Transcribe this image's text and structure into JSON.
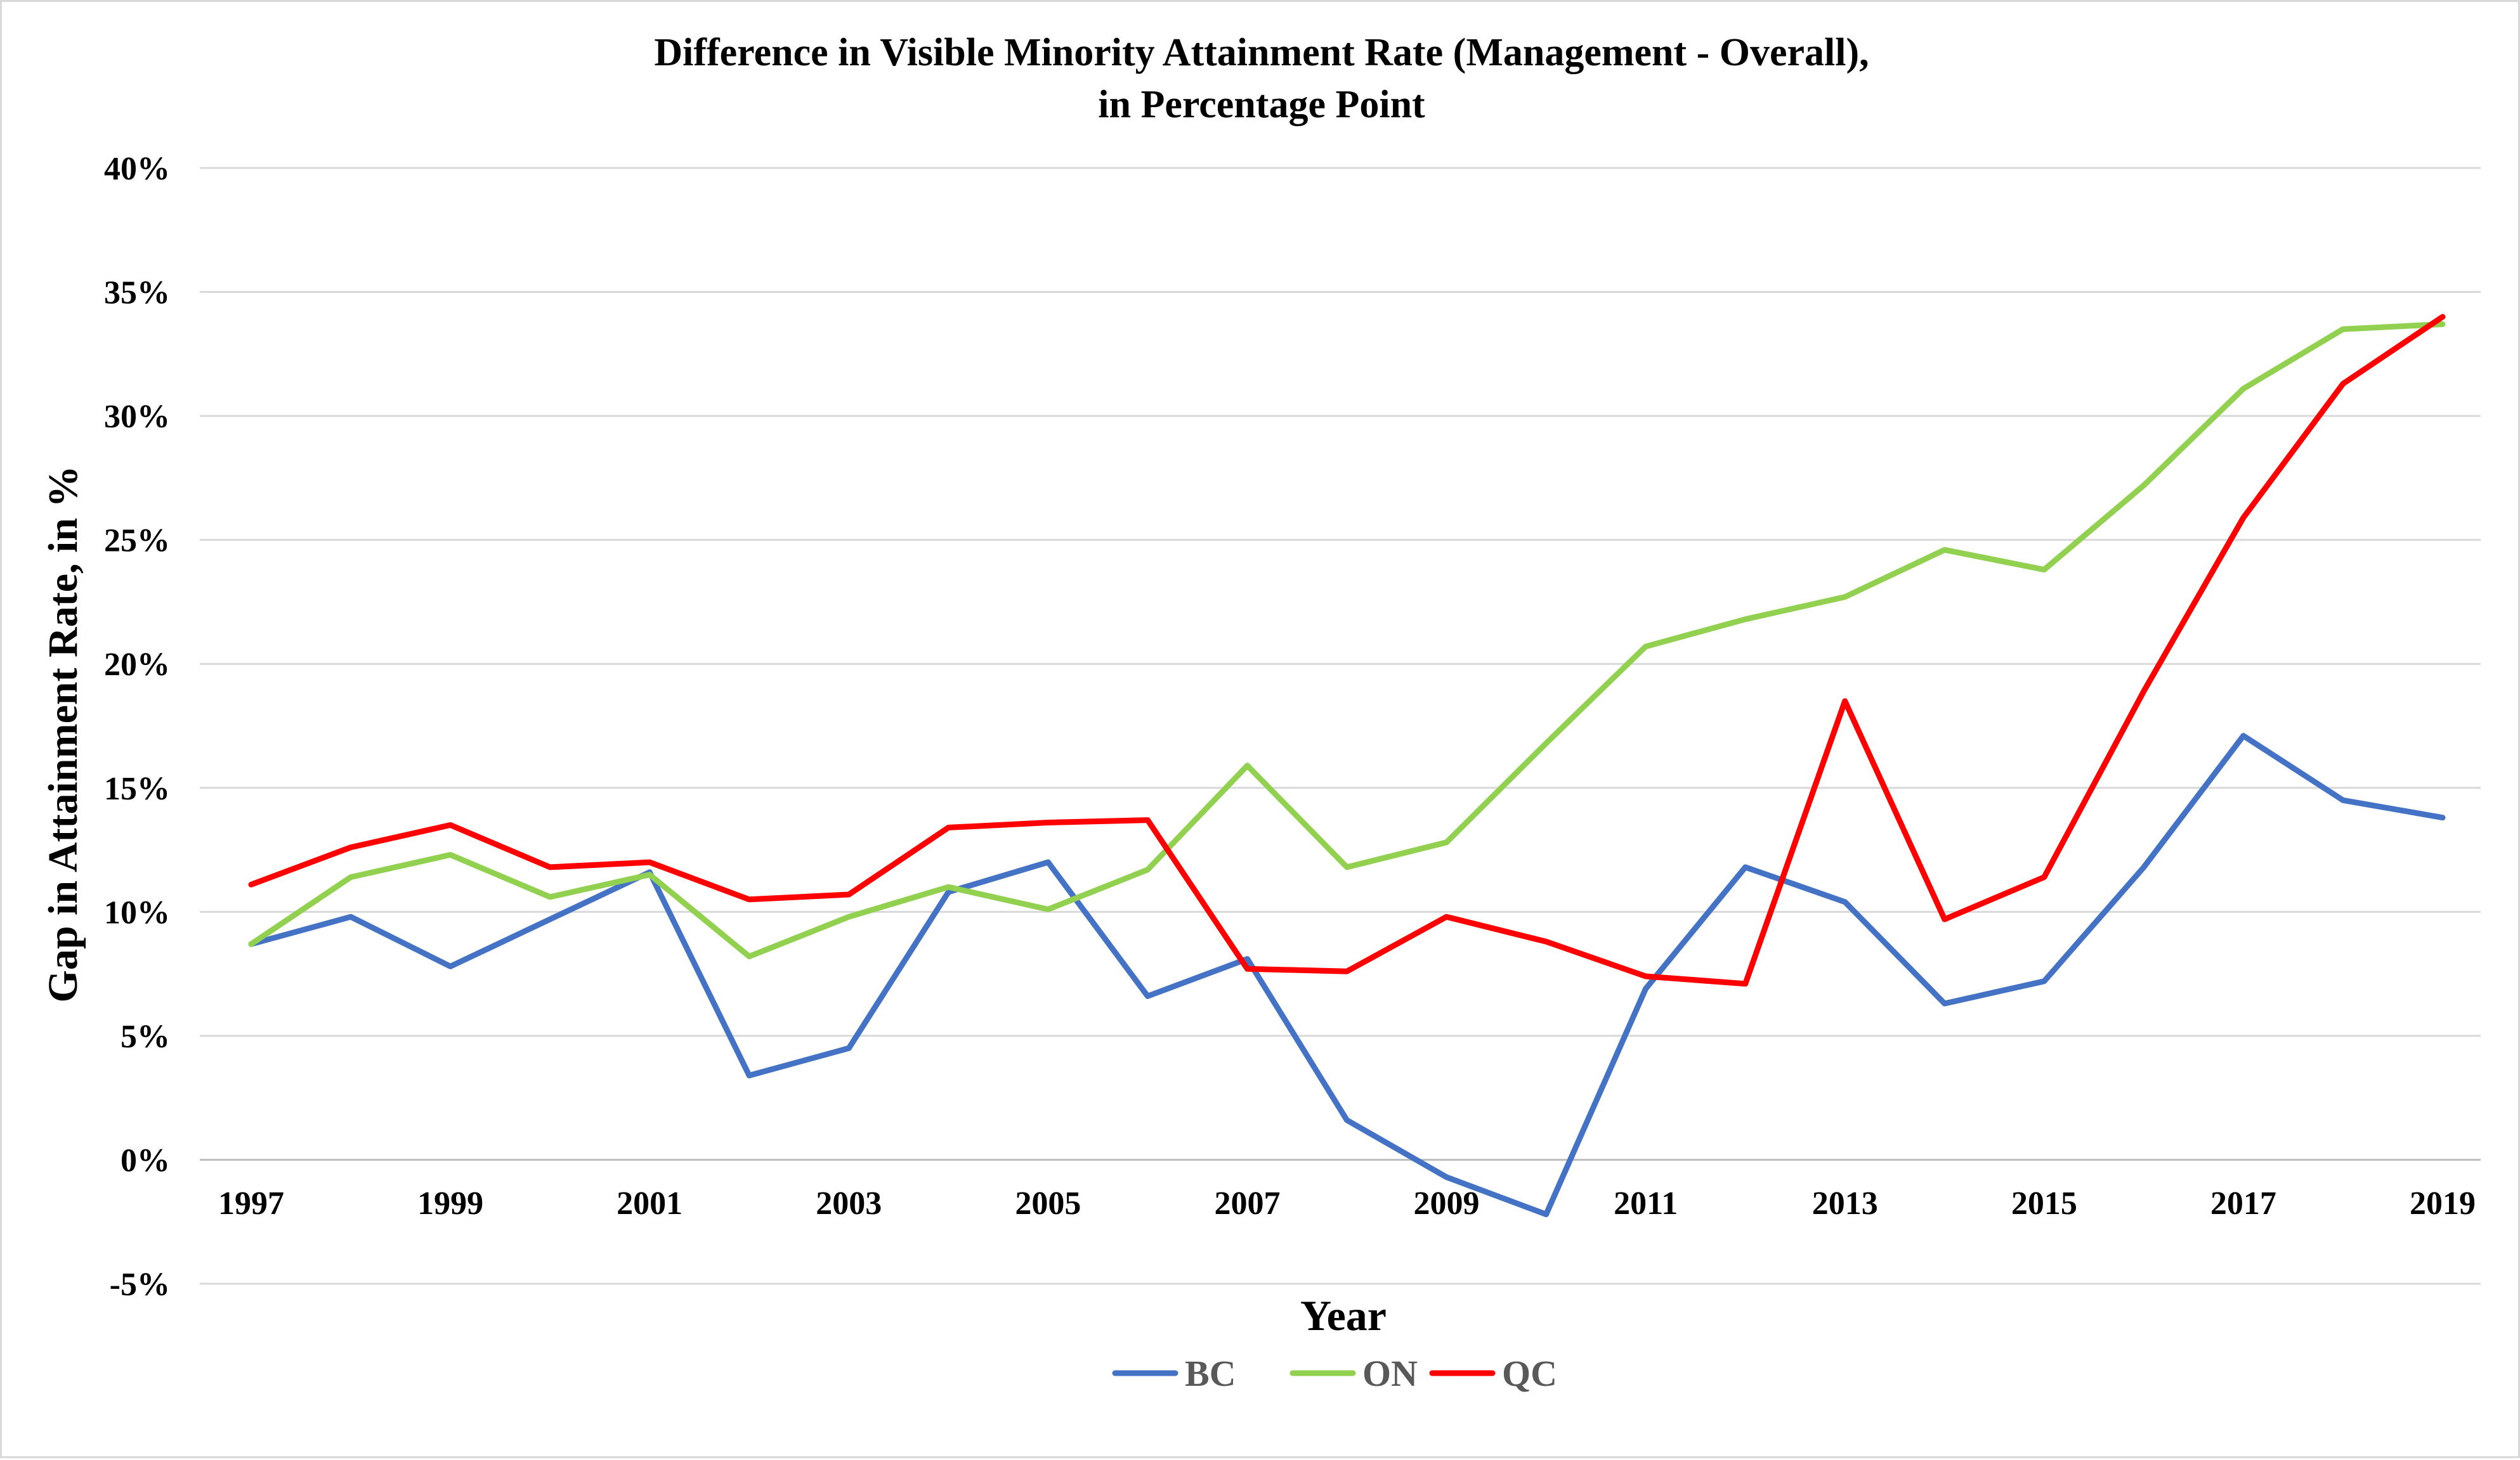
{
  "chart_data": {
    "type": "line",
    "title_line1": "Difference in  Visible Minority Attainment Rate (Management -  Overall),",
    "title_line2": "in Percentage Point",
    "xlabel": "Year",
    "ylabel": "Gap in Attainment Rate, in  %",
    "x": [
      1997,
      1998,
      1999,
      2000,
      2001,
      2002,
      2003,
      2004,
      2005,
      2006,
      2007,
      2008,
      2009,
      2010,
      2011,
      2012,
      2013,
      2014,
      2015,
      2016,
      2017,
      2018,
      2019
    ],
    "x_tick_labels": [
      "1997",
      "1999",
      "2001",
      "2003",
      "2005",
      "2007",
      "2009",
      "2011",
      "2013",
      "2015",
      "2017",
      "2019"
    ],
    "y_tick_labels": [
      "-5%",
      "0%",
      "5%",
      "10%",
      "15%",
      "20%",
      "25%",
      "30%",
      "35%",
      "40%"
    ],
    "ylim": [
      -5,
      40
    ],
    "y_tick_step": 5,
    "grid": true,
    "legend_position": "bottom-center",
    "series": [
      {
        "name": "BC",
        "color": "#4472C4",
        "values": [
          8.7,
          9.8,
          7.8,
          9.7,
          11.6,
          3.4,
          4.5,
          10.8,
          12.0,
          6.6,
          8.1,
          1.6,
          -0.7,
          -2.2,
          6.9,
          11.8,
          10.4,
          6.3,
          7.2,
          11.8,
          17.1,
          14.5,
          13.8
        ]
      },
      {
        "name": "ON",
        "color": "#92D050",
        "values": [
          8.7,
          11.4,
          12.3,
          10.6,
          11.5,
          8.2,
          9.8,
          11.0,
          10.1,
          11.7,
          15.9,
          11.8,
          12.8,
          16.8,
          20.7,
          21.8,
          22.7,
          24.6,
          23.8,
          27.2,
          31.1,
          33.5,
          33.7
        ]
      },
      {
        "name": "QC",
        "color": "#FF0000",
        "values": [
          11.1,
          12.6,
          13.5,
          11.8,
          12.0,
          10.5,
          10.7,
          13.4,
          13.6,
          13.7,
          7.7,
          7.6,
          9.8,
          8.8,
          7.4,
          7.1,
          18.5,
          9.7,
          11.4,
          18.9,
          25.9,
          31.3,
          34.0
        ]
      }
    ]
  }
}
